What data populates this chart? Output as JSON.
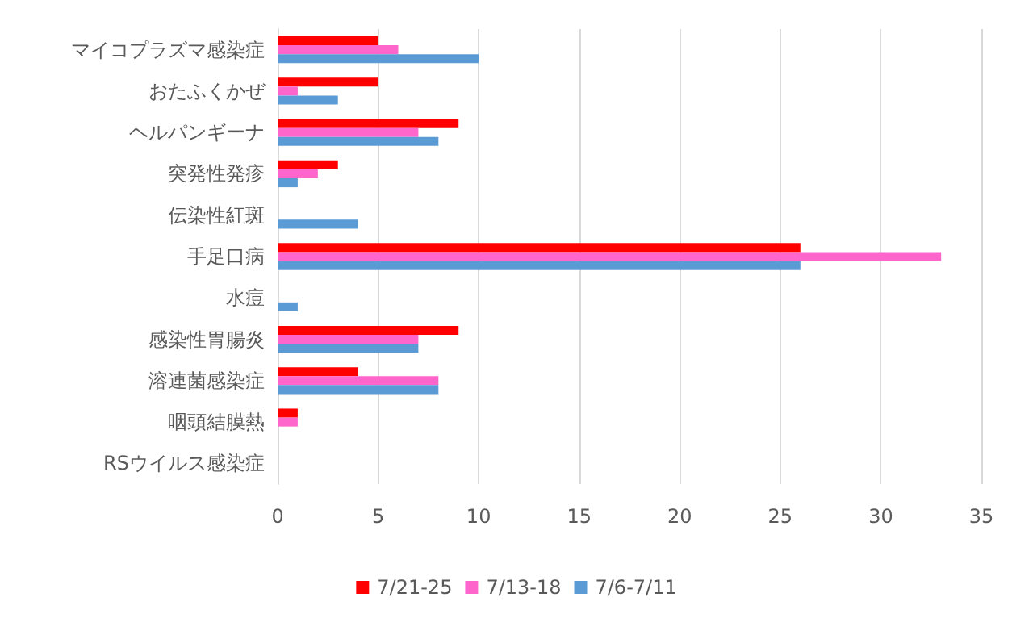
{
  "chart_data": {
    "type": "bar",
    "orientation": "horizontal",
    "categories": [
      "マイコプラズマ感染症",
      "おたふくかぜ",
      "ヘルパンギーナ",
      "突発性発疹",
      "伝染性紅斑",
      "手足口病",
      "水痘",
      "感染性胃腸炎",
      "溶連菌感染症",
      "咽頭結膜熱",
      "RSウイルス感染症"
    ],
    "series": [
      {
        "name": "7/21-25",
        "color": "#ff0000",
        "values": [
          5,
          5,
          9,
          3,
          0,
          26,
          0,
          9,
          4,
          1,
          0
        ]
      },
      {
        "name": "7/13-18",
        "color": "#ff66cc",
        "values": [
          6,
          1,
          7,
          2,
          0,
          33,
          0,
          7,
          8,
          1,
          0
        ]
      },
      {
        "name": "7/6-7/11",
        "color": "#5b9bd5",
        "values": [
          10,
          3,
          8,
          1,
          4,
          26,
          1,
          7,
          8,
          0,
          0
        ]
      }
    ],
    "xlim": [
      0,
      35
    ],
    "xticks": [
      0,
      5,
      10,
      15,
      20,
      25,
      30,
      35
    ],
    "grid": "x",
    "legend": "bottom"
  }
}
